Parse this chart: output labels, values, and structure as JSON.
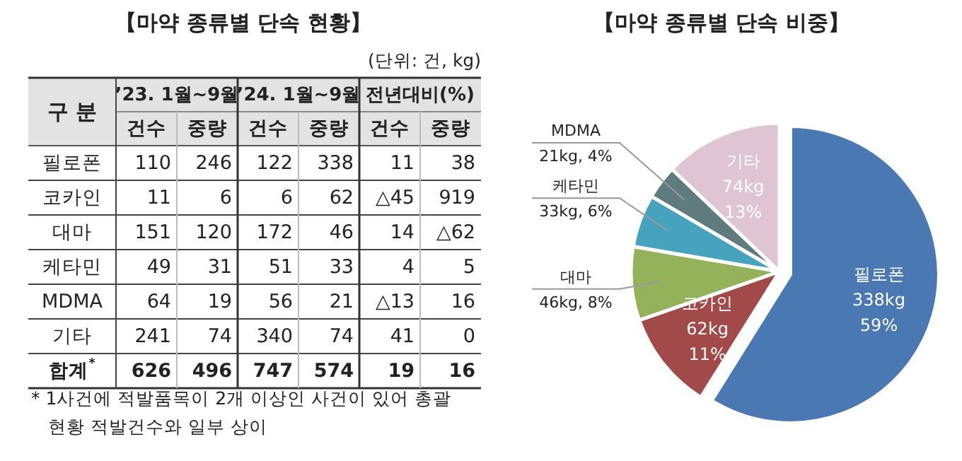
{
  "chart_data": [
    {
      "type": "other",
      "title": "【마약 종류별 단속 현황】",
      "subtitle": "(단위: 건, kg)",
      "ylabel": "구 분",
      "categories": [
        "건수",
        "중량",
        "건수",
        "중량",
        "건수",
        "중량"
      ],
      "y_categories": [
        "필로폰",
        "코카인",
        "대마",
        "케타민",
        "MDMA",
        "기타",
        "합계$^{*}$"
      ],
      "cell_labels": [
        [
          "110",
          "246",
          "122",
          "338",
          "11",
          "38"
        ],
        [
          "11",
          "6",
          "6",
          "62",
          "△45",
          "919"
        ],
        [
          "151",
          "120",
          "172",
          "46",
          "14",
          "△62"
        ],
        [
          "49",
          "31",
          "51",
          "33",
          "4",
          "5"
        ],
        [
          "64",
          "19",
          "56",
          "21",
          "△13",
          "16"
        ],
        [
          "241",
          "74",
          "340",
          "74",
          "41",
          "0"
        ],
        [
          "626",
          "496",
          "747",
          "574",
          "19",
          "16"
        ]
      ],
      "annotations": [
        "’23. 1월~9월",
        "’24. 1월~9월",
        "전년대비(%)",
        "* 1사건에 적발품목이 2개 이상인 사건이 있어 총괄 현황 적발건수와 일부 상이"
      ]
    },
    {
      "type": "pie",
      "title": "【마약 종류별 단속 비중】",
      "categories": [
        "필로폰",
        "코카인",
        "대마",
        "케타민",
        "MDMA",
        "기타"
      ],
      "values": [
        338,
        62,
        46,
        33,
        21,
        74
      ],
      "value_labels": [
        "338kg\n59%",
        "62kg\n11%",
        "46kg, 8%",
        "33kg, 6%",
        "21kg, 4%",
        "74kg\n13%"
      ],
      "colors": [
        "#4a78b2",
        "#a24a4a",
        "#93b25a",
        "#47a3bd",
        "#5f7b7d",
        "#dfc5d3"
      ]
    }
  ]
}
